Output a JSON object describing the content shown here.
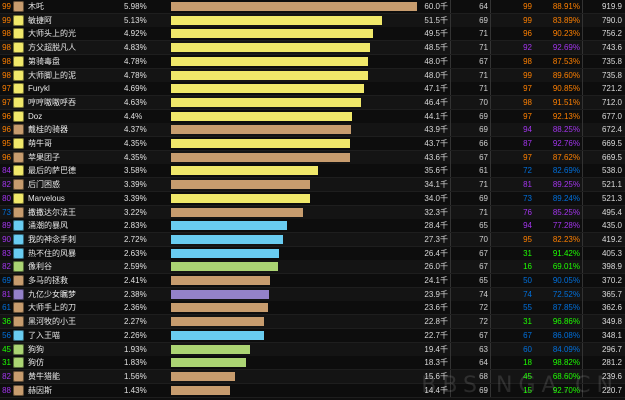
{
  "colors": {
    "rank_orange": "#ff8000",
    "rank_purple": "#a335ee",
    "rank_blue": "#0070dd",
    "rank_green": "#1eff00",
    "class_warrior": "#c79c6e",
    "class_paladin": "#f0e86a",
    "class_mage": "#69ccf0",
    "class_hunter": "#abd473",
    "class_warlock": "#9482c9",
    "class_rogue": "#fff569",
    "class_druid": "#ff7d0a"
  },
  "rows": [
    {
      "prank": "99",
      "name": "木吒",
      "pct": "5.98%",
      "fill": 1.0,
      "barClass": "class_warrior",
      "dps": "60.0千",
      "count": "64",
      "rank2": "99",
      "parse": "88.91%",
      "value": "919.9",
      "icon": "warrior-icon"
    },
    {
      "prank": "99",
      "name": "敏捷阿",
      "pct": "5.13%",
      "fill": 0.858,
      "barClass": "class_paladin",
      "dps": "51.5千",
      "count": "69",
      "rank2": "99",
      "parse": "83.89%",
      "value": "790.0",
      "icon": "paladin-icon"
    },
    {
      "prank": "98",
      "name": "大师头上的光",
      "pct": "4.92%",
      "fill": 0.823,
      "barClass": "class_paladin",
      "dps": "49.5千",
      "count": "71",
      "rank2": "96",
      "parse": "90.23%",
      "value": "756.2",
      "icon": "paladin-icon"
    },
    {
      "prank": "98",
      "name": "方父超脱凡人",
      "pct": "4.83%",
      "fill": 0.808,
      "barClass": "class_paladin",
      "dps": "48.5千",
      "count": "71",
      "rank2": "92",
      "parse": "92.69%",
      "value": "743.6",
      "icon": "paladin-icon"
    },
    {
      "prank": "98",
      "name": "第骑毒盘",
      "pct": "4.78%",
      "fill": 0.799,
      "barClass": "class_paladin",
      "dps": "48.0千",
      "count": "67",
      "rank2": "98",
      "parse": "87.53%",
      "value": "735.8",
      "icon": "paladin-icon"
    },
    {
      "prank": "98",
      "name": "大师脚上的泥",
      "pct": "4.78%",
      "fill": 0.799,
      "barClass": "class_paladin",
      "dps": "48.0千",
      "count": "71",
      "rank2": "99",
      "parse": "89.60%",
      "value": "735.8",
      "icon": "paladin-icon"
    },
    {
      "prank": "97",
      "name": "Furykl",
      "pct": "4.69%",
      "fill": 0.784,
      "barClass": "class_paladin",
      "dps": "47.1千",
      "count": "71",
      "rank2": "97",
      "parse": "90.85%",
      "value": "721.2",
      "icon": "paladin-icon"
    },
    {
      "prank": "97",
      "name": "哼哼嗷嗷呼吞",
      "pct": "4.63%",
      "fill": 0.774,
      "barClass": "class_paladin",
      "dps": "46.4千",
      "count": "70",
      "rank2": "98",
      "parse": "91.51%",
      "value": "712.0",
      "icon": "paladin-icon"
    },
    {
      "prank": "96",
      "name": "Doz",
      "pct": "4.4%",
      "fill": 0.736,
      "barClass": "class_paladin",
      "dps": "44.1千",
      "count": "69",
      "rank2": "97",
      "parse": "92.13%",
      "value": "677.0",
      "icon": "paladin-icon"
    },
    {
      "prank": "96",
      "name": "戴桂的骑器",
      "pct": "4.37%",
      "fill": 0.731,
      "barClass": "class_warrior",
      "dps": "43.9千",
      "count": "69",
      "rank2": "94",
      "parse": "88.25%",
      "value": "672.4",
      "icon": "warrior-icon"
    },
    {
      "prank": "95",
      "name": "萌牛哥",
      "pct": "4.35%",
      "fill": 0.727,
      "barClass": "class_paladin",
      "dps": "43.7千",
      "count": "66",
      "rank2": "87",
      "parse": "92.76%",
      "value": "669.5",
      "icon": "paladin-icon"
    },
    {
      "prank": "96",
      "name": "苹果团子",
      "pct": "4.35%",
      "fill": 0.727,
      "barClass": "class_warrior",
      "dps": "43.6千",
      "count": "67",
      "rank2": "97",
      "parse": "87.62%",
      "value": "669.5",
      "icon": "warrior-icon"
    },
    {
      "prank": "84",
      "name": "最后的萨巴德",
      "pct": "3.58%",
      "fill": 0.599,
      "barClass": "class_paladin",
      "dps": "35.6千",
      "count": "61",
      "rank2": "72",
      "parse": "82.69%",
      "value": "538.0",
      "icon": "paladin-icon"
    },
    {
      "prank": "82",
      "name": "后门困惑",
      "pct": "3.39%",
      "fill": 0.567,
      "barClass": "class_warrior",
      "dps": "34.1千",
      "count": "71",
      "rank2": "81",
      "parse": "89.25%",
      "value": "521.1",
      "icon": "warrior-icon"
    },
    {
      "prank": "80",
      "name": "Marvelous",
      "pct": "3.39%",
      "fill": 0.567,
      "barClass": "class_paladin",
      "dps": "34.0千",
      "count": "69",
      "rank2": "73",
      "parse": "89.24%",
      "value": "521.3",
      "icon": "paladin-icon"
    },
    {
      "prank": "73",
      "name": "撒撒达尔法王",
      "pct": "3.22%",
      "fill": 0.538,
      "barClass": "class_warrior",
      "dps": "32.3千",
      "count": "71",
      "rank2": "76",
      "parse": "85.25%",
      "value": "495.4",
      "icon": "warrior-icon"
    },
    {
      "prank": "89",
      "name": "涌潮的暴风",
      "pct": "2.83%",
      "fill": 0.473,
      "barClass": "class_mage",
      "dps": "28.4千",
      "count": "65",
      "rank2": "94",
      "parse": "77.28%",
      "value": "435.0",
      "icon": "mage-icon"
    },
    {
      "prank": "90",
      "name": "我的神念手刺",
      "pct": "2.72%",
      "fill": 0.455,
      "barClass": "class_mage",
      "dps": "27.3千",
      "count": "70",
      "rank2": "95",
      "parse": "82.23%",
      "value": "419.2",
      "icon": "mage-icon"
    },
    {
      "prank": "83",
      "name": "热不住的风暴",
      "pct": "2.63%",
      "fill": 0.44,
      "barClass": "class_mage",
      "dps": "26.4千",
      "count": "67",
      "rank2": "31",
      "parse": "91.42%",
      "value": "405.3",
      "icon": "mage-icon"
    },
    {
      "prank": "82",
      "name": "像利谷",
      "pct": "2.59%",
      "fill": 0.433,
      "barClass": "class_hunter",
      "dps": "26.0千",
      "count": "67",
      "rank2": "16",
      "parse": "69.01%",
      "value": "398.9",
      "icon": "hunter-icon"
    },
    {
      "prank": "69",
      "name": "多马的拯救",
      "pct": "2.41%",
      "fill": 0.403,
      "barClass": "class_warrior",
      "dps": "24.1千",
      "count": "65",
      "rank2": "50",
      "parse": "90.05%",
      "value": "370.2",
      "icon": "warrior-icon"
    },
    {
      "prank": "81",
      "name": "九亿少女瞩梦",
      "pct": "2.38%",
      "fill": 0.398,
      "barClass": "class_warlock",
      "dps": "23.9千",
      "count": "74",
      "rank2": "74",
      "parse": "72.52%",
      "value": "365.7",
      "icon": "warlock-icon"
    },
    {
      "prank": "61",
      "name": "大师手上的刀",
      "pct": "2.36%",
      "fill": 0.395,
      "barClass": "class_warrior",
      "dps": "23.6千",
      "count": "72",
      "rank2": "55",
      "parse": "87.85%",
      "value": "362.6",
      "icon": "warrior-icon"
    },
    {
      "prank": "36",
      "name": "黑河牧的小王",
      "pct": "2.27%",
      "fill": 0.38,
      "barClass": "class_warrior",
      "dps": "22.8千",
      "count": "72",
      "rank2": "31",
      "parse": "96.86%",
      "value": "349.8",
      "icon": "warrior-icon"
    },
    {
      "prank": "56",
      "name": "了入王喵",
      "pct": "2.26%",
      "fill": 0.378,
      "barClass": "class_mage",
      "dps": "22.7千",
      "count": "67",
      "rank2": "67",
      "parse": "86.08%",
      "value": "348.1",
      "icon": "mage-icon"
    },
    {
      "prank": "45",
      "name": "狗狗",
      "pct": "1.93%",
      "fill": 0.323,
      "barClass": "class_hunter",
      "dps": "19.4千",
      "count": "63",
      "rank2": "60",
      "parse": "84.09%",
      "value": "296.7",
      "icon": "hunter-icon"
    },
    {
      "prank": "31",
      "name": "狗仿",
      "pct": "1.83%",
      "fill": 0.306,
      "barClass": "class_hunter",
      "dps": "18.3千",
      "count": "64",
      "rank2": "18",
      "parse": "98.82%",
      "value": "281.2",
      "icon": "hunter-icon"
    },
    {
      "prank": "82",
      "name": "黄牛猎能",
      "pct": "1.56%",
      "fill": 0.261,
      "barClass": "class_warrior",
      "dps": "15.6千",
      "count": "68",
      "rank2": "45",
      "parse": "68.60%",
      "value": "239.6",
      "icon": "warrior-icon"
    },
    {
      "prank": "88",
      "name": "赫因斯",
      "pct": "1.43%",
      "fill": 0.239,
      "barClass": "class_warrior",
      "dps": "14.4千",
      "count": "69",
      "rank2": "15",
      "parse": "92.70%",
      "value": "220.7",
      "icon": "warrior-icon"
    }
  ],
  "watermark": "BBS.NGA.CN"
}
